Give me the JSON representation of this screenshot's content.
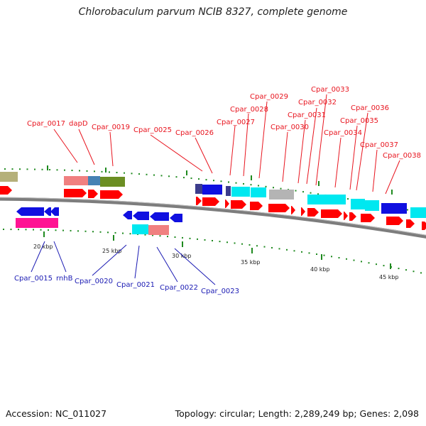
{
  "title": "Chlorobaculum parvum NCIB 8327, complete genome",
  "footer": {
    "accession": "Accession: NC_011027",
    "summary": "Topology: circular; Length: 2,289,249 bp; Genes: 2,098"
  },
  "colors": {
    "top_label": "#e8141e",
    "bottom_label": "#1a1ab3",
    "backbone": "#7d7d7d",
    "tick_green": "#1f8a1f",
    "cds_red": "#ff0000"
  },
  "scale_labels": [
    "20 kbp",
    "25 kbp",
    "30 kbp",
    "35 kbp",
    "40 kbp",
    "45 kbp"
  ],
  "top_gene_labels": [
    "Cpar_0017",
    "dapD",
    "Cpar_0019",
    "Cpar_0025",
    "Cpar_0026",
    "Cpar_0027",
    "Cpar_0028",
    "Cpar_0029",
    "Cpar_0030",
    "Cpar_0031",
    "Cpar_0032",
    "Cpar_0033",
    "Cpar_0034",
    "Cpar_0035",
    "Cpar_0036",
    "Cpar_0037",
    "Cpar_0038"
  ],
  "bottom_gene_labels": [
    "Cpar_0015",
    "rnhB",
    "Cpar_0020",
    "Cpar_0021",
    "Cpar_0022",
    "Cpar_0023"
  ],
  "category_colors": {
    "khaki": "#b5b07a",
    "salmon": "#f08080",
    "steel": "#4682b4",
    "olive": "#6b8e23",
    "navy": "#3c3c8c",
    "blue": "#1010e0",
    "cyan": "#00e8f0",
    "grey": "#b4b4b4",
    "magenta": "#ff1493"
  }
}
